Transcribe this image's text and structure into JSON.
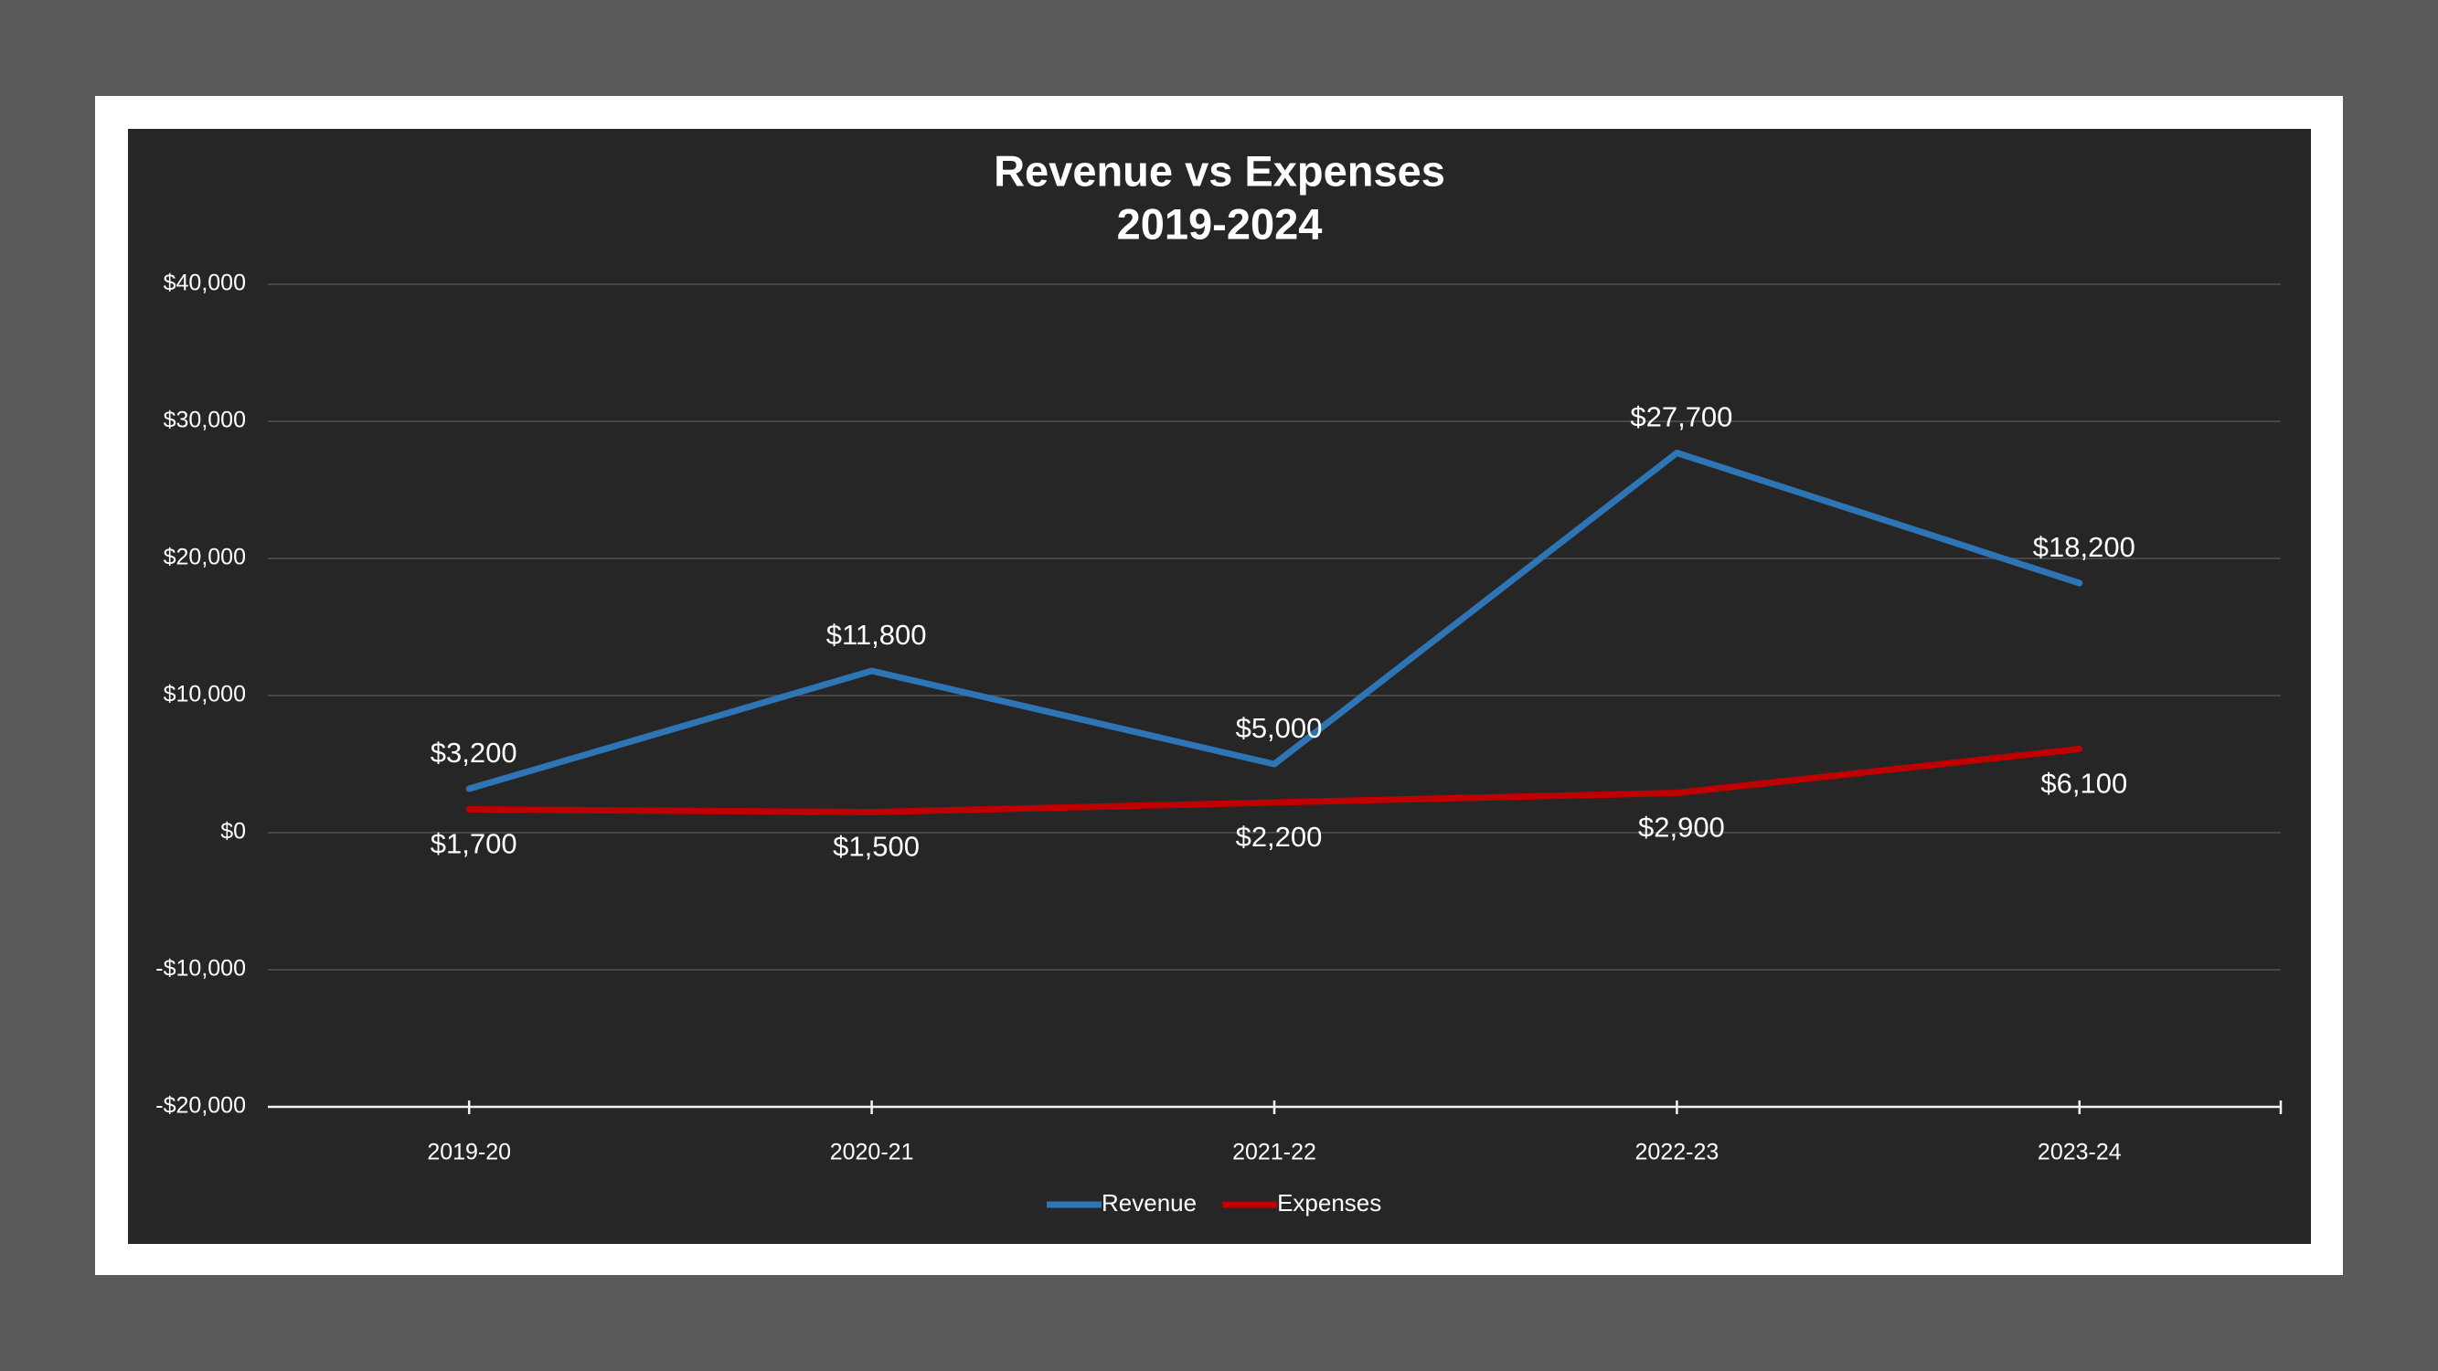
{
  "chart_data": {
    "type": "line",
    "title": "Revenue vs Expenses",
    "subtitle": "2019-2024",
    "categories": [
      "2019-20",
      "2020-21",
      "2021-22",
      "2022-23",
      "2023-24"
    ],
    "series": [
      {
        "name": "Revenue",
        "color": "#2e75b6",
        "values": [
          3200,
          11800,
          5000,
          27700,
          18200
        ],
        "value_labels": [
          "$3,200",
          "$11,800",
          "$5,000",
          "$27,700",
          "$18,200"
        ]
      },
      {
        "name": "Expenses",
        "color": "#c00000",
        "values": [
          1700,
          1500,
          2200,
          2900,
          6100
        ],
        "value_labels": [
          "$1,700",
          "$1,500",
          "$2,200",
          "$2,900",
          "$6,100"
        ]
      }
    ],
    "ylim": [
      -20000,
      40000
    ],
    "yticks": [
      {
        "value": -20000,
        "label": "-$20,000"
      },
      {
        "value": -10000,
        "label": "-$10,000"
      },
      {
        "value": 0,
        "label": "$0"
      },
      {
        "value": 10000,
        "label": "$10,000"
      },
      {
        "value": 20000,
        "label": "$20,000"
      },
      {
        "value": 30000,
        "label": "$30,000"
      },
      {
        "value": 40000,
        "label": "$40,000"
      }
    ],
    "grid": true,
    "legend": "bottom"
  }
}
